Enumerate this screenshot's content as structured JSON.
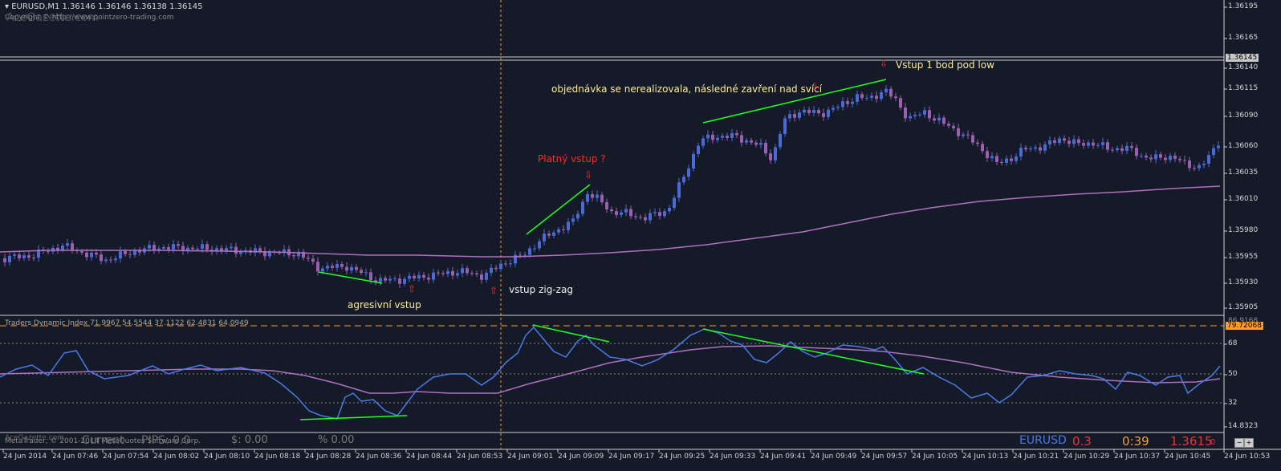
{
  "chart": {
    "symbol_line": "EURUSD,M1  1.36146 1.36146 1.36138 1.36145",
    "copyright": "Copyright © http://www.pointzero-trading.com",
    "watermark": "AceGazette.com",
    "footer_copyright": "MetaTrader, © 2001-2014 MetaQuotes Software Corp.",
    "colors": {
      "background": "#151a28",
      "bull": "#4a6ad8",
      "bear": "#9b5fb0",
      "ma": "#b070c0",
      "trend": "#22ff22",
      "annotation": "#ffeb9a",
      "signal": "#ff2a2a"
    }
  },
  "price_axis": {
    "labels": [
      "1.36195",
      "1.36165",
      "1.36140",
      "1.36115",
      "1.36090",
      "1.36060",
      "1.36035",
      "1.36010",
      "1.35980",
      "1.35955",
      "1.35930",
      "1.35905"
    ],
    "current_price": "1.36145"
  },
  "annotations": {
    "vstup_1": "Vstup 1 bod pod low",
    "objednavka": "objednávka se nerealizovala, následné zavření nad svící",
    "platny": "Platný vstup ?",
    "agresivni": "agresivní vstup",
    "zigzag": "vstup zig-zag",
    "arrow_down": "⇩",
    "arrow_up": "⇧"
  },
  "indicator": {
    "title": "Traders Dynamic Index 71.9967 54.5544 37.1122 62.4831 64.0949",
    "labels": [
      "68",
      "50",
      "32",
      "14.8323"
    ],
    "current_value": "79.72068",
    "partial_label": "86.9168"
  },
  "time_axis": [
    "24 Jun 2014",
    "24 Jun 07:46",
    "24 Jun 07:54",
    "24 Jun 08:02",
    "24 Jun 08:10",
    "24 Jun 08:18",
    "24 Jun 08:28",
    "24 Jun 08:36",
    "24 Jun 08:44",
    "24 Jun 08:53",
    "24 Jun 09:01",
    "24 Jun 09:09",
    "24 Jun 09:17",
    "24 Jun 09:25",
    "24 Jun 09:33",
    "24 Jun 09:41",
    "24 Jun 09:49",
    "24 Jun 09:57",
    "24 Jun 10:05",
    "24 Jun 10:13",
    "24 Jun 10:21",
    "24 Jun 10:29",
    "24 Jun 10:37",
    "24 Jun 10:45",
    "24 Jun 10:53"
  ],
  "status_bar": {
    "current": "Current",
    "pips": "PIPS: 0.0",
    "dollars": "$: 0.00",
    "percent": "% 0.00",
    "watermark": "AceGazette.com",
    "symbol": "EURUSD",
    "spread": "0.3",
    "timer": "0:39",
    "price": "1.3615",
    "price_digit": "0"
  }
}
